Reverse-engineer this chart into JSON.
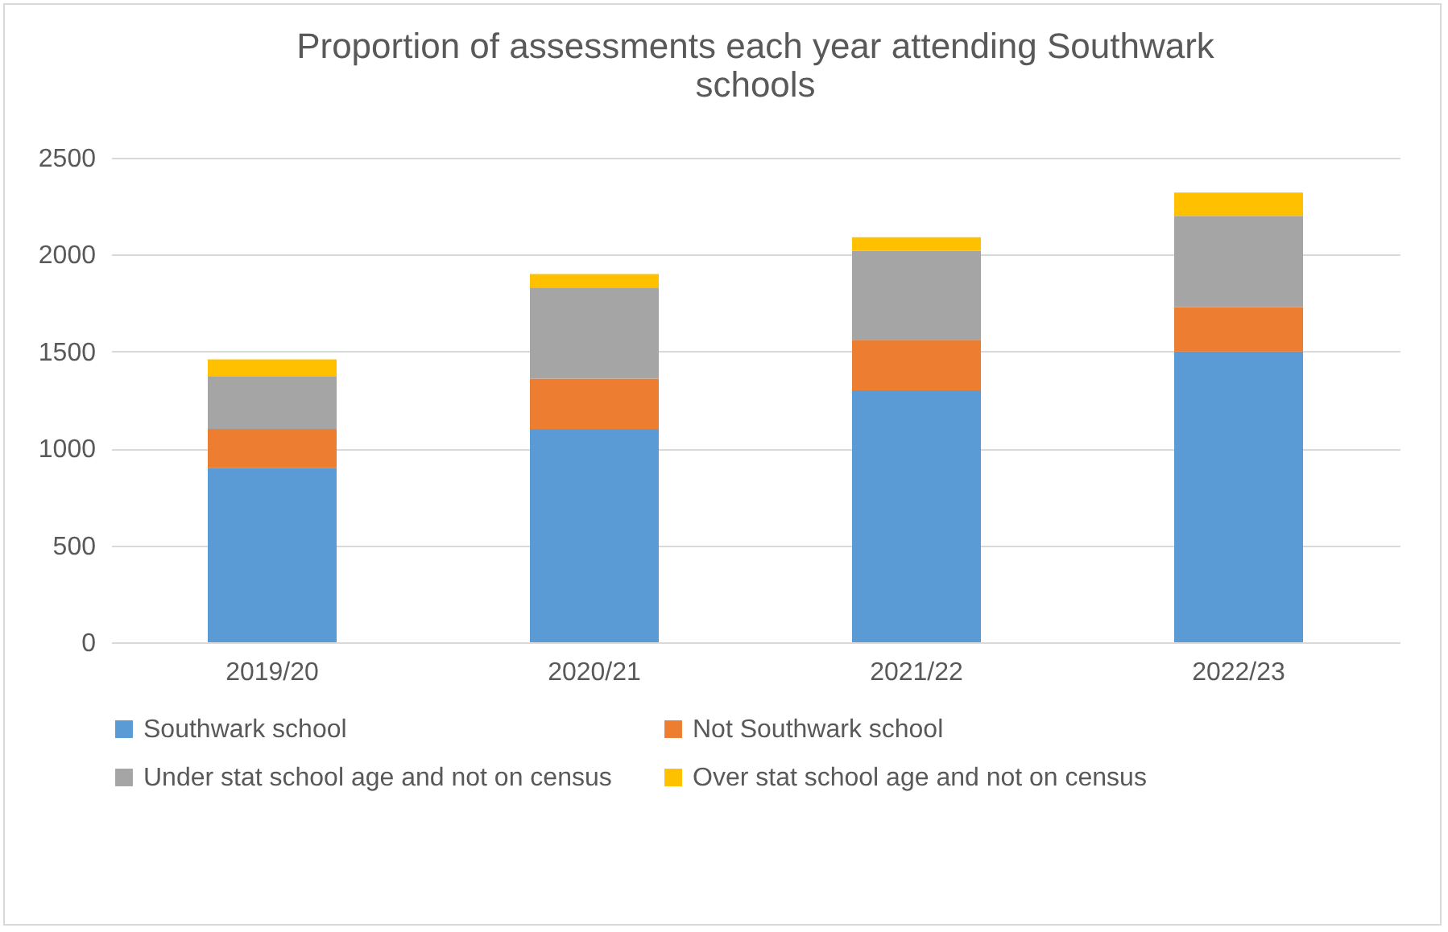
{
  "chart_data": {
    "type": "bar",
    "title": [
      "Proportion of assessments each year attending Southwark",
      "schools"
    ],
    "categories": [
      "2019/20",
      "2020/21",
      "2021/22",
      "2022/23"
    ],
    "stacked": true,
    "series": [
      {
        "name": "Southwark school",
        "color": "#5b9bd5",
        "values": [
          900,
          1100,
          1300,
          1500
        ]
      },
      {
        "name": "Not Southwark school",
        "color": "#ed7d31",
        "values": [
          200,
          260,
          260,
          230
        ]
      },
      {
        "name": "Under stat school age and not on census",
        "color": "#a5a5a5",
        "values": [
          270,
          470,
          460,
          470
        ]
      },
      {
        "name": "Over stat school age and not on census",
        "color": "#ffc000",
        "values": [
          90,
          70,
          70,
          120
        ]
      }
    ],
    "ylim": [
      0,
      2500
    ],
    "yticks": [
      0,
      500,
      1000,
      1500,
      2000,
      2500
    ],
    "grid": "y",
    "legend": "bottom"
  }
}
